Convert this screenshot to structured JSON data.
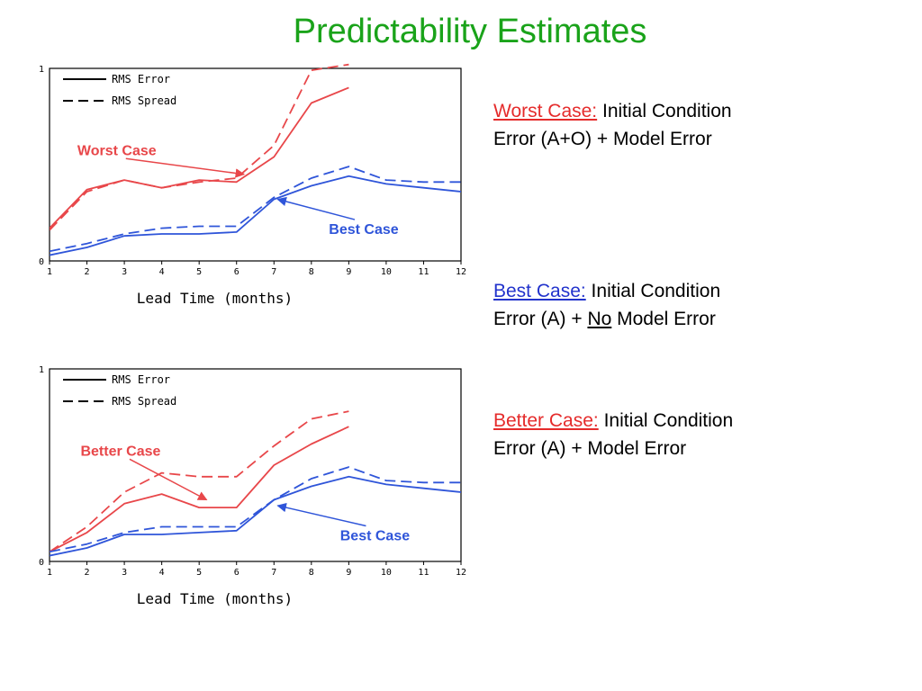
{
  "title": "Predictability Estimates",
  "colors": {
    "title": "#1aa31a",
    "red": "#e8474a",
    "blue": "#2f55d9",
    "worst_head": "#e52b2b",
    "best_head": "#2233cc",
    "better_head": "#e52b2b"
  },
  "notes": {
    "worst": {
      "head": "Worst Case:",
      "line1": " Initial Condition",
      "line2": "Error (A+O) + Model Error"
    },
    "best": {
      "head": "Best Case:",
      "line1": " Initial Condition",
      "line2_pre": "Error (A) + ",
      "line2_u": "No",
      "line2_post": " Model Error"
    },
    "better": {
      "head": "Better Case:",
      "line1": " Initial Condition",
      "line2": "Error (A) + Model Error"
    }
  },
  "chart_data": [
    {
      "type": "line",
      "title": "",
      "xlabel": "Lead Time (months)",
      "ylabel": "",
      "xlim": [
        1,
        12
      ],
      "ylim": [
        0,
        1
      ],
      "x_ticks": [
        "1",
        "2",
        "3",
        "4",
        "5",
        "6",
        "7",
        "8",
        "9",
        "10",
        "11",
        "12"
      ],
      "y_ticks": [
        "0",
        "1"
      ],
      "legend": [
        "RMS Error",
        "RMS Spread"
      ],
      "legend_position": "top-left",
      "series": [
        {
          "name": "RMS Error",
          "color": "red",
          "dash": false,
          "x": [
            1,
            2,
            3,
            4,
            5,
            6,
            7,
            8,
            9
          ],
          "values": [
            0.17,
            0.37,
            0.42,
            0.38,
            0.42,
            0.41,
            0.54,
            0.82,
            0.9
          ]
        },
        {
          "name": "RMS Spread",
          "color": "red",
          "dash": true,
          "x": [
            1,
            2,
            3,
            4,
            5,
            6,
            7,
            8,
            9
          ],
          "values": [
            0.16,
            0.36,
            0.42,
            0.38,
            0.41,
            0.43,
            0.6,
            0.99,
            1.02
          ]
        },
        {
          "name": "RMS Error",
          "color": "blue",
          "dash": false,
          "x": [
            1,
            2,
            3,
            4,
            5,
            6,
            7,
            8,
            9,
            10,
            11,
            12
          ],
          "values": [
            0.03,
            0.07,
            0.13,
            0.14,
            0.14,
            0.15,
            0.32,
            0.39,
            0.44,
            0.4,
            0.38,
            0.36
          ]
        },
        {
          "name": "RMS Spread",
          "color": "blue",
          "dash": true,
          "x": [
            1,
            2,
            3,
            4,
            5,
            6,
            7,
            8,
            9,
            10,
            11,
            12
          ],
          "values": [
            0.05,
            0.09,
            0.14,
            0.17,
            0.18,
            0.18,
            0.33,
            0.43,
            0.49,
            0.42,
            0.41,
            0.41
          ]
        }
      ],
      "annotations": [
        {
          "text": "Worst Case",
          "color": "red",
          "x": 2.8,
          "y": 0.55,
          "arrow_to": [
            6.2,
            0.45
          ]
        },
        {
          "text": "Best Case",
          "color": "blue",
          "x": 9.4,
          "y": 0.14,
          "arrow_to": [
            7.1,
            0.32
          ]
        }
      ]
    },
    {
      "type": "line",
      "title": "",
      "xlabel": "Lead Time (months)",
      "ylabel": "",
      "xlim": [
        1,
        12
      ],
      "ylim": [
        0,
        1
      ],
      "x_ticks": [
        "1",
        "2",
        "3",
        "4",
        "5",
        "6",
        "7",
        "8",
        "9",
        "10",
        "11",
        "12"
      ],
      "y_ticks": [
        "0",
        "1"
      ],
      "legend": [
        "RMS Error",
        "RMS Spread"
      ],
      "legend_position": "top-left",
      "series": [
        {
          "name": "RMS Error",
          "color": "red",
          "dash": false,
          "x": [
            1,
            2,
            3,
            4,
            5,
            6,
            7,
            8,
            9
          ],
          "values": [
            0.05,
            0.15,
            0.3,
            0.35,
            0.28,
            0.28,
            0.5,
            0.61,
            0.7
          ]
        },
        {
          "name": "RMS Spread",
          "color": "red",
          "dash": true,
          "x": [
            1,
            2,
            3,
            4,
            5,
            6,
            7,
            8,
            9
          ],
          "values": [
            0.05,
            0.18,
            0.36,
            0.46,
            0.44,
            0.44,
            0.6,
            0.74,
            0.78
          ]
        },
        {
          "name": "RMS Error",
          "color": "blue",
          "dash": false,
          "x": [
            1,
            2,
            3,
            4,
            5,
            6,
            7,
            8,
            9,
            10,
            11,
            12
          ],
          "values": [
            0.03,
            0.07,
            0.14,
            0.14,
            0.15,
            0.16,
            0.32,
            0.39,
            0.44,
            0.4,
            0.38,
            0.36
          ]
        },
        {
          "name": "RMS Spread",
          "color": "blue",
          "dash": true,
          "x": [
            1,
            2,
            3,
            4,
            5,
            6,
            7,
            8,
            9,
            10,
            11,
            12
          ],
          "values": [
            0.05,
            0.09,
            0.15,
            0.18,
            0.18,
            0.18,
            0.32,
            0.43,
            0.49,
            0.42,
            0.41,
            0.41
          ]
        }
      ],
      "annotations": [
        {
          "text": "Better Case",
          "color": "red",
          "x": 2.9,
          "y": 0.55,
          "arrow_to": [
            5.2,
            0.32
          ]
        },
        {
          "text": "Best Case",
          "color": "blue",
          "x": 9.7,
          "y": 0.11,
          "arrow_to": [
            7.1,
            0.29
          ]
        }
      ]
    }
  ]
}
